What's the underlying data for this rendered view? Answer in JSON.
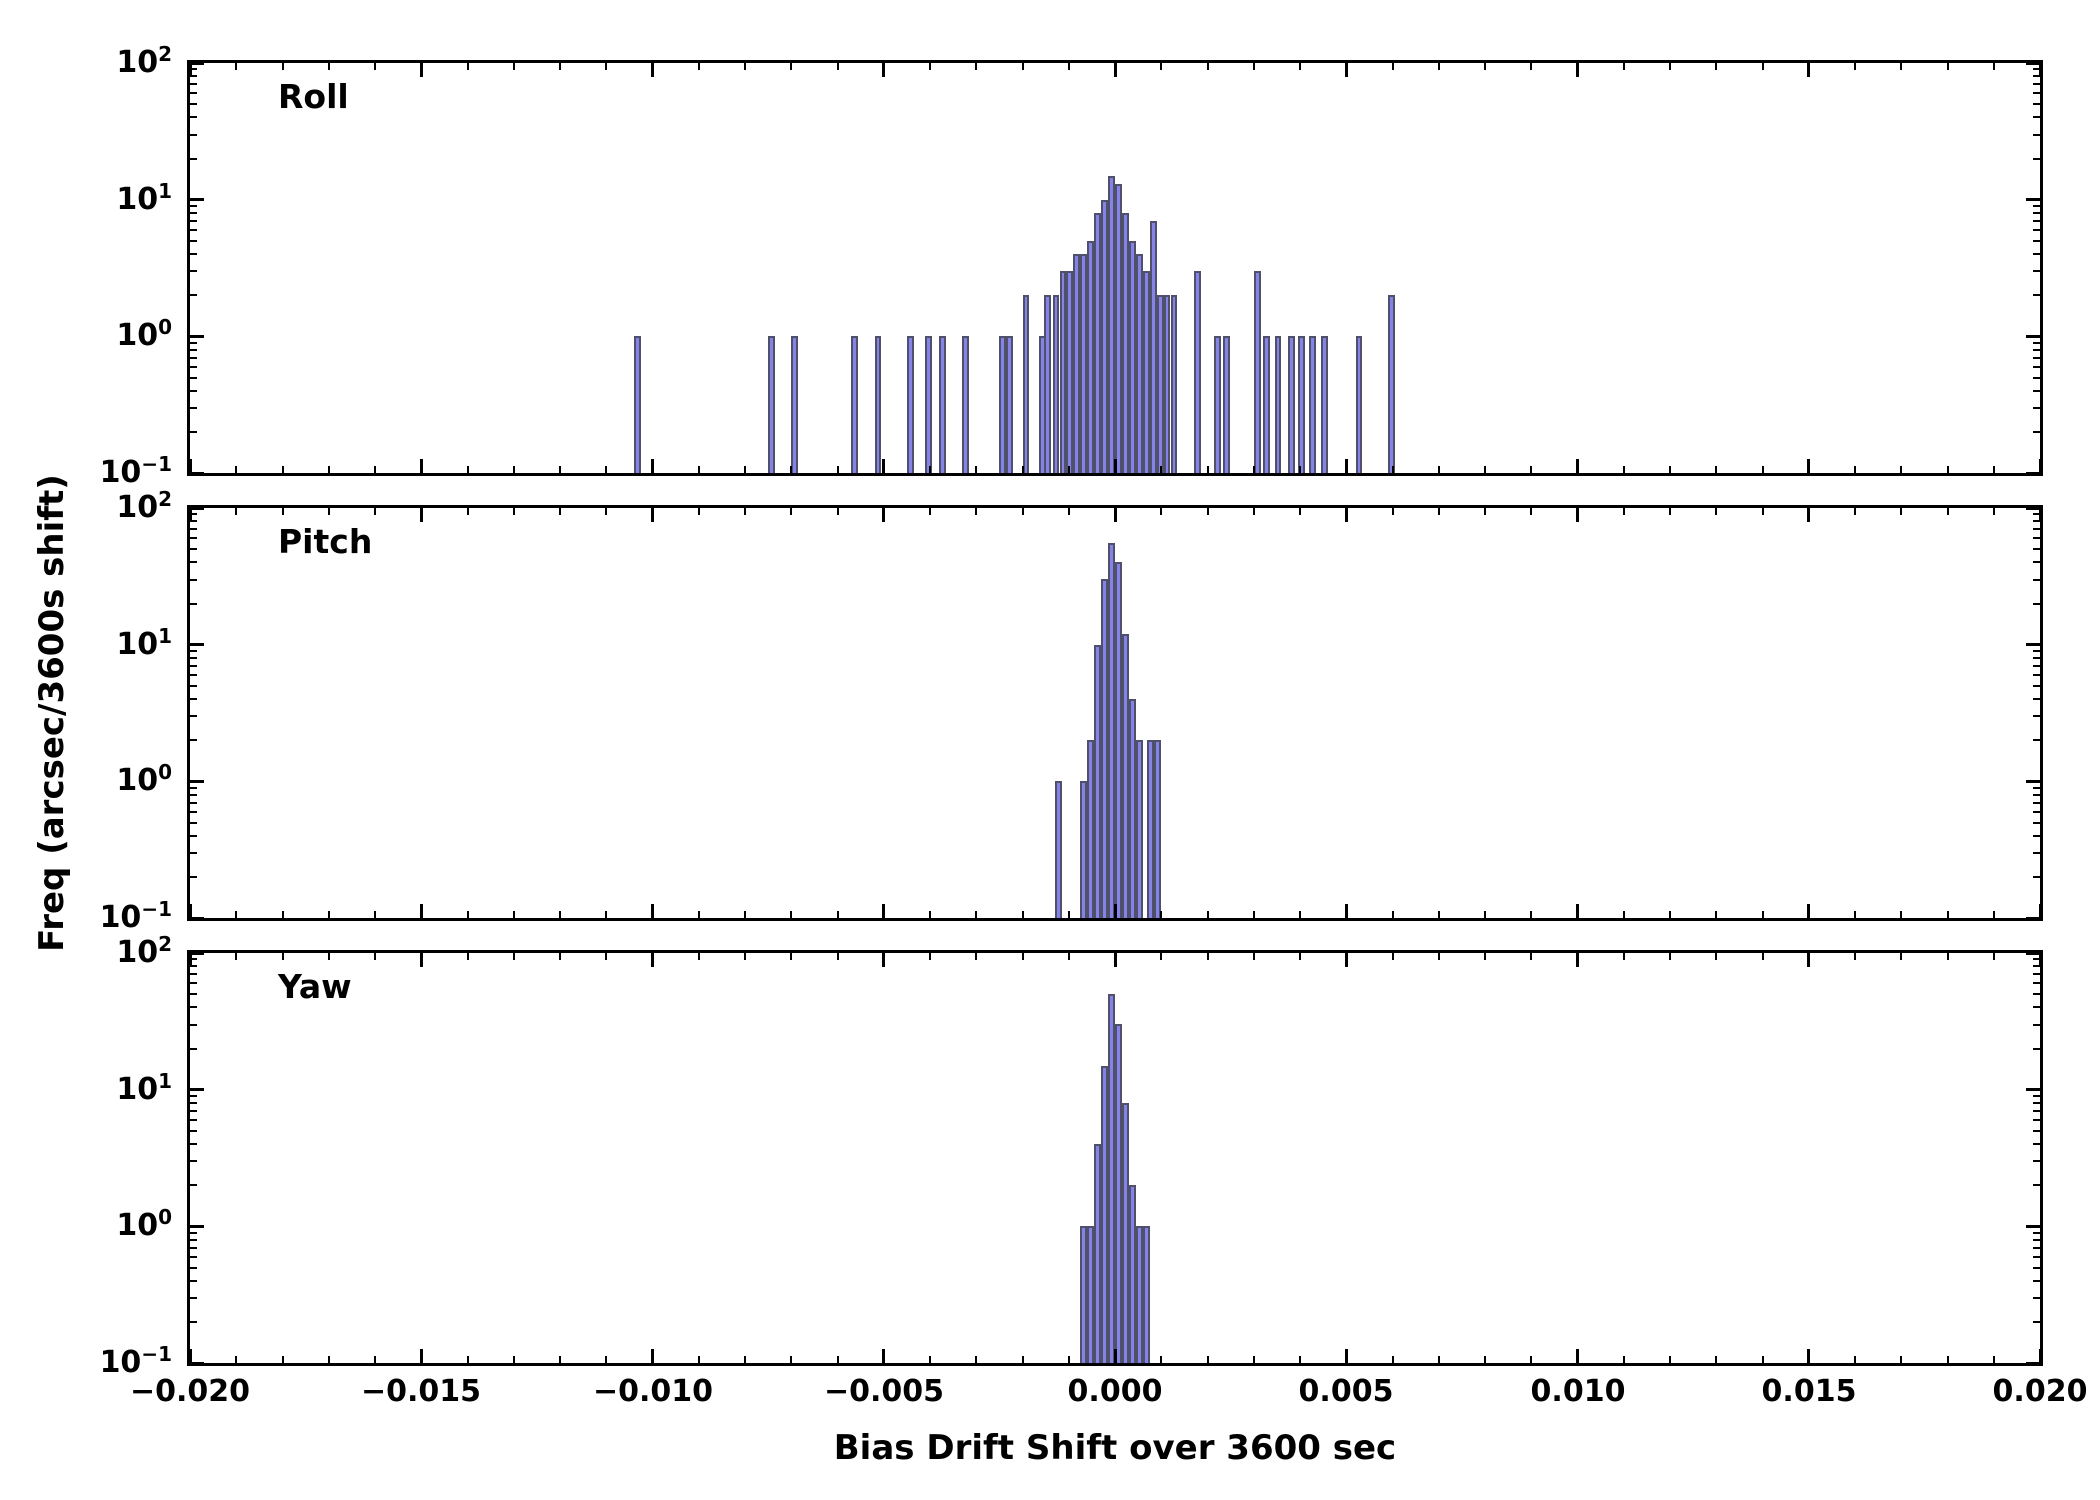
{
  "figure": {
    "xlabel": "Bias Drift Shift over 3600 sec",
    "ylabel": "Freq (arcsec/3600s shift)",
    "background_color": "#ffffff",
    "bar_fill_color": "#8383e8",
    "bar_edge_color": "#50506a",
    "axis_color": "#000000"
  },
  "axes": {
    "xlim": [
      -0.02,
      0.02
    ],
    "y_exponent_range": [
      -1,
      2
    ],
    "yscale": "log",
    "x_major_ticks": [
      -0.02,
      -0.015,
      -0.01,
      -0.005,
      0,
      0.005,
      0.01,
      0.015,
      0.02
    ],
    "x_tick_labels": [
      "−0.020",
      "−0.015",
      "−0.010",
      "−0.005",
      "0.000",
      "0.005",
      "0.010",
      "0.015",
      "0.020"
    ],
    "x_minor_step": 0.001,
    "y_tick_exponents": [
      -1,
      0,
      1,
      2
    ]
  },
  "chart_data": [
    {
      "type": "bar",
      "title": "Roll",
      "xlabel": "Bias Drift Shift over 3600 sec",
      "ylabel": "Freq (arcsec/3600s shift)",
      "xlim": [
        -0.02,
        0.02
      ],
      "ylim": [
        0.1,
        100
      ],
      "yscale": "log",
      "grid": false,
      "bin_width": 0.00015,
      "bars": [
        {
          "x": -0.0104,
          "h": 1
        },
        {
          "x": -0.0075,
          "h": 1
        },
        {
          "x": -0.007,
          "h": 1
        },
        {
          "x": -0.0057,
          "h": 1
        },
        {
          "x": -0.0052,
          "h": 1
        },
        {
          "x": -0.0045,
          "h": 1
        },
        {
          "x": -0.0041,
          "h": 1
        },
        {
          "x": -0.0038,
          "h": 1
        },
        {
          "x": -0.0033,
          "h": 1
        },
        {
          "x": -0.0025,
          "h": 1
        },
        {
          "x": -0.00235,
          "h": 1
        },
        {
          "x": -0.002,
          "h": 2
        },
        {
          "x": -0.00165,
          "h": 1
        },
        {
          "x": -0.00153,
          "h": 2
        },
        {
          "x": -0.00135,
          "h": 2
        },
        {
          "x": -0.0012,
          "h": 3
        },
        {
          "x": -0.00105,
          "h": 3
        },
        {
          "x": -0.0009,
          "h": 4
        },
        {
          "x": -0.00075,
          "h": 4
        },
        {
          "x": -0.0006,
          "h": 5
        },
        {
          "x": -0.00045,
          "h": 8
        },
        {
          "x": -0.0003,
          "h": 10
        },
        {
          "x": -0.00015,
          "h": 15
        },
        {
          "x": 0.0,
          "h": 13
        },
        {
          "x": 0.00015,
          "h": 8
        },
        {
          "x": 0.0003,
          "h": 5
        },
        {
          "x": 0.00045,
          "h": 4
        },
        {
          "x": 0.0006,
          "h": 3
        },
        {
          "x": 0.00075,
          "h": 7
        },
        {
          "x": 0.0009,
          "h": 2
        },
        {
          "x": 0.00105,
          "h": 2
        },
        {
          "x": 0.0012,
          "h": 2
        },
        {
          "x": 0.0017,
          "h": 3
        },
        {
          "x": 0.00215,
          "h": 1
        },
        {
          "x": 0.00233,
          "h": 1
        },
        {
          "x": 0.003,
          "h": 3
        },
        {
          "x": 0.0032,
          "h": 1
        },
        {
          "x": 0.00345,
          "h": 1
        },
        {
          "x": 0.00375,
          "h": 1
        },
        {
          "x": 0.00395,
          "h": 1
        },
        {
          "x": 0.0042,
          "h": 1
        },
        {
          "x": 0.00445,
          "h": 1
        },
        {
          "x": 0.0052,
          "h": 1
        },
        {
          "x": 0.0059,
          "h": 2
        }
      ]
    },
    {
      "type": "bar",
      "title": "Pitch",
      "xlabel": "Bias Drift Shift over 3600 sec",
      "ylabel": "Freq (arcsec/3600s shift)",
      "xlim": [
        -0.02,
        0.02
      ],
      "ylim": [
        0.1,
        100
      ],
      "yscale": "log",
      "grid": false,
      "bin_width": 0.00015,
      "bars": [
        {
          "x": -0.0013,
          "h": 1
        },
        {
          "x": -0.00075,
          "h": 1
        },
        {
          "x": -0.0006,
          "h": 2
        },
        {
          "x": -0.00045,
          "h": 10
        },
        {
          "x": -0.0003,
          "h": 30
        },
        {
          "x": -0.00015,
          "h": 55
        },
        {
          "x": 0.0,
          "h": 40
        },
        {
          "x": 0.00015,
          "h": 12
        },
        {
          "x": 0.0003,
          "h": 4
        },
        {
          "x": 0.00045,
          "h": 2
        },
        {
          "x": 0.0007,
          "h": 2
        },
        {
          "x": 0.00085,
          "h": 2
        }
      ]
    },
    {
      "type": "bar",
      "title": "Yaw",
      "xlabel": "Bias Drift Shift over 3600 sec",
      "ylabel": "Freq (arcsec/3600s shift)",
      "xlim": [
        -0.02,
        0.02
      ],
      "ylim": [
        0.1,
        100
      ],
      "yscale": "log",
      "grid": false,
      "bin_width": 0.00015,
      "bars": [
        {
          "x": -0.00075,
          "h": 1
        },
        {
          "x": -0.0006,
          "h": 1
        },
        {
          "x": -0.00045,
          "h": 4
        },
        {
          "x": -0.0003,
          "h": 15
        },
        {
          "x": -0.00015,
          "h": 50
        },
        {
          "x": 0.0,
          "h": 30
        },
        {
          "x": 0.00015,
          "h": 8
        },
        {
          "x": 0.0003,
          "h": 2
        },
        {
          "x": 0.00045,
          "h": 1
        },
        {
          "x": 0.0006,
          "h": 1
        }
      ]
    }
  ]
}
